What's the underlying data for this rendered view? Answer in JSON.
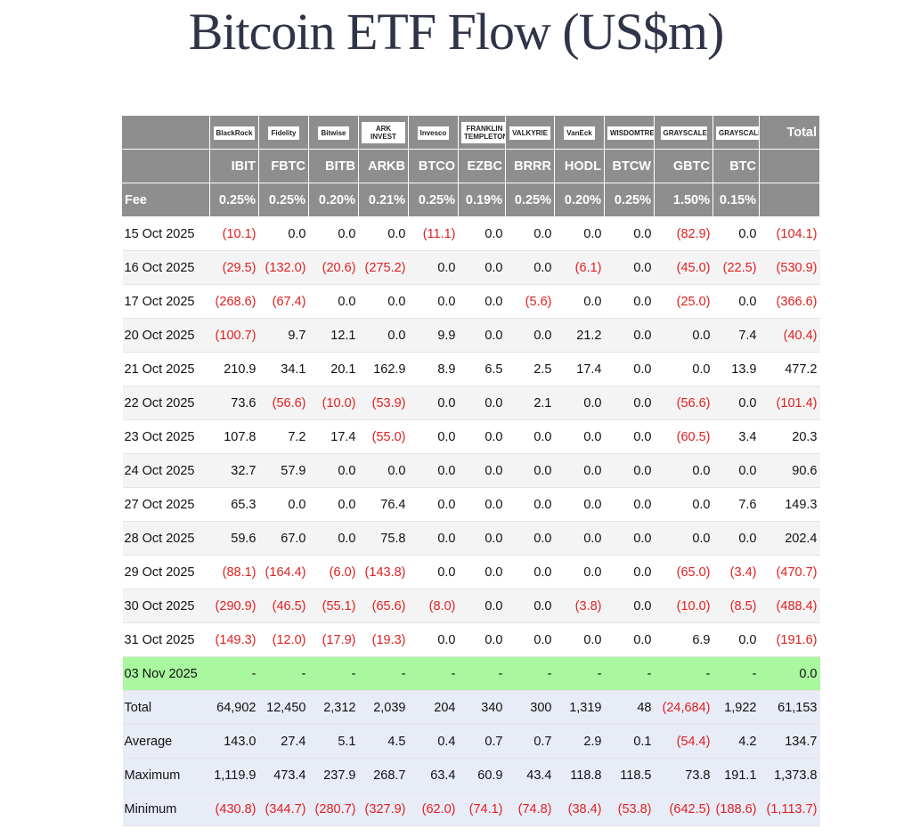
{
  "title": "Bitcoin ETF Flow (US$m)",
  "table": {
    "logos": [
      "BlackRock",
      "Fidelity",
      "Bitwise",
      "ARK INVEST",
      "Invesco",
      "FRANKLIN TEMPLETON",
      "VALKYRIE",
      "VanEck",
      "WISDOMTREE",
      "GRAYSCALE",
      "GRAYSCALE"
    ],
    "total_header": "Total",
    "tickers": [
      "IBIT",
      "FBTC",
      "BITB",
      "ARKB",
      "BTCO",
      "EZBC",
      "BRRR",
      "HODL",
      "BTCW",
      "GBTC",
      "BTC"
    ],
    "fee_label": "Fee",
    "fees": [
      "0.25%",
      "0.25%",
      "0.20%",
      "0.21%",
      "0.25%",
      "0.19%",
      "0.25%",
      "0.20%",
      "0.25%",
      "1.50%",
      "0.15%"
    ],
    "rows": [
      [
        "15 Oct 2025",
        "(10.1)",
        "0.0",
        "0.0",
        "0.0",
        "(11.1)",
        "0.0",
        "0.0",
        "0.0",
        "0.0",
        "(82.9)",
        "0.0",
        "(104.1)"
      ],
      [
        "16 Oct 2025",
        "(29.5)",
        "(132.0)",
        "(20.6)",
        "(275.2)",
        "0.0",
        "0.0",
        "0.0",
        "(6.1)",
        "0.0",
        "(45.0)",
        "(22.5)",
        "(530.9)"
      ],
      [
        "17 Oct 2025",
        "(268.6)",
        "(67.4)",
        "0.0",
        "0.0",
        "0.0",
        "0.0",
        "(5.6)",
        "0.0",
        "0.0",
        "(25.0)",
        "0.0",
        "(366.6)"
      ],
      [
        "20 Oct 2025",
        "(100.7)",
        "9.7",
        "12.1",
        "0.0",
        "9.9",
        "0.0",
        "0.0",
        "21.2",
        "0.0",
        "0.0",
        "7.4",
        "(40.4)"
      ],
      [
        "21 Oct 2025",
        "210.9",
        "34.1",
        "20.1",
        "162.9",
        "8.9",
        "6.5",
        "2.5",
        "17.4",
        "0.0",
        "0.0",
        "13.9",
        "477.2"
      ],
      [
        "22 Oct 2025",
        "73.6",
        "(56.6)",
        "(10.0)",
        "(53.9)",
        "0.0",
        "0.0",
        "2.1",
        "0.0",
        "0.0",
        "(56.6)",
        "0.0",
        "(101.4)"
      ],
      [
        "23 Oct 2025",
        "107.8",
        "7.2",
        "17.4",
        "(55.0)",
        "0.0",
        "0.0",
        "0.0",
        "0.0",
        "0.0",
        "(60.5)",
        "3.4",
        "20.3"
      ],
      [
        "24 Oct 2025",
        "32.7",
        "57.9",
        "0.0",
        "0.0",
        "0.0",
        "0.0",
        "0.0",
        "0.0",
        "0.0",
        "0.0",
        "0.0",
        "90.6"
      ],
      [
        "27 Oct 2025",
        "65.3",
        "0.0",
        "0.0",
        "76.4",
        "0.0",
        "0.0",
        "0.0",
        "0.0",
        "0.0",
        "0.0",
        "7.6",
        "149.3"
      ],
      [
        "28 Oct 2025",
        "59.6",
        "67.0",
        "0.0",
        "75.8",
        "0.0",
        "0.0",
        "0.0",
        "0.0",
        "0.0",
        "0.0",
        "0.0",
        "202.4"
      ],
      [
        "29 Oct 2025",
        "(88.1)",
        "(164.4)",
        "(6.0)",
        "(143.8)",
        "0.0",
        "0.0",
        "0.0",
        "0.0",
        "0.0",
        "(65.0)",
        "(3.4)",
        "(470.7)"
      ],
      [
        "30 Oct 2025",
        "(290.9)",
        "(46.5)",
        "(55.1)",
        "(65.6)",
        "(8.0)",
        "0.0",
        "0.0",
        "(3.8)",
        "0.0",
        "(10.0)",
        "(8.5)",
        "(488.4)"
      ],
      [
        "31 Oct 2025",
        "(149.3)",
        "(12.0)",
        "(17.9)",
        "(19.3)",
        "0.0",
        "0.0",
        "0.0",
        "0.0",
        "0.0",
        "6.9",
        "0.0",
        "(191.6)"
      ],
      [
        "03 Nov 2025",
        "-",
        "-",
        "-",
        "-",
        "-",
        "-",
        "-",
        "-",
        "-",
        "-",
        "-",
        "0.0"
      ]
    ],
    "summary": [
      [
        "Total",
        "64,902",
        "12,450",
        "2,312",
        "2,039",
        "204",
        "340",
        "300",
        "1,319",
        "48",
        "(24,684)",
        "1,922",
        "61,153"
      ],
      [
        "Average",
        "143.0",
        "27.4",
        "5.1",
        "4.5",
        "0.4",
        "0.7",
        "0.7",
        "2.9",
        "0.1",
        "(54.4)",
        "4.2",
        "134.7"
      ],
      [
        "Maximum",
        "1,119.9",
        "473.4",
        "237.9",
        "268.7",
        "63.4",
        "60.9",
        "43.4",
        "118.8",
        "118.5",
        "73.8",
        "191.1",
        "1,373.8"
      ],
      [
        "Minimum",
        "(430.8)",
        "(344.7)",
        "(280.7)",
        "(327.9)",
        "(62.0)",
        "(74.1)",
        "(74.8)",
        "(38.4)",
        "(53.8)",
        "(642.5)",
        "(188.6)",
        "(1,113.7)"
      ]
    ]
  }
}
